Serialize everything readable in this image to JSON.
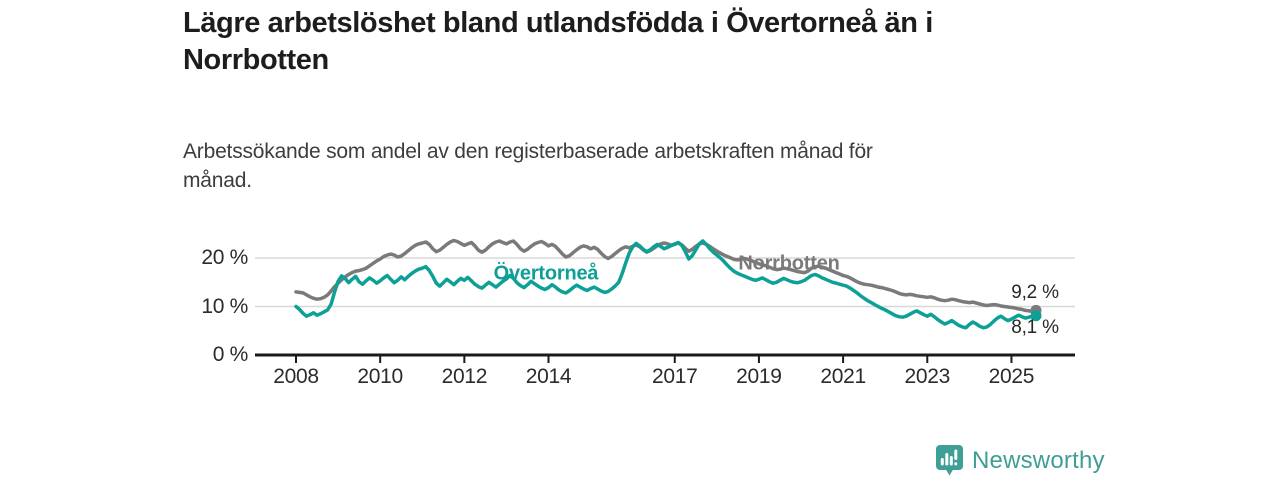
{
  "title": {
    "lines": [
      "Lägre arbetslöshet bland utlandsfödda i Övertorneå än i",
      "Norrbotten"
    ]
  },
  "subtitle": {
    "lines": [
      "Arbetssökande som andel av den registerbaserade arbetskraften månad för",
      "månad."
    ]
  },
  "branding": {
    "logo_text": "Newsworthy",
    "logo_color": "#3f9e96",
    "logo_icon": "bar-chart-speech-bubble"
  },
  "colors": {
    "axis": "#1a1a1a",
    "gridline": "#d8d8d8",
    "tick_label": "#2b2b2b",
    "title_text": "#1d1d1d",
    "subtitle_text": "#3d3d3d",
    "value_label": "#272727"
  },
  "chart_data": {
    "type": "line",
    "title": "Lägre arbetslöshet bland utlandsfödda i Övertorneå än i Norrbotten",
    "subtitle": "Arbetssökande som andel av den registerbaserade arbetskraften månad för månad.",
    "unit": "%",
    "frequency": "monthly",
    "x_range": [
      "2008-01",
      "2025-08"
    ],
    "ylim": [
      0,
      25
    ],
    "grid": "horizontal",
    "legend_position": "inline-annotations",
    "y_axis": {
      "ticks": [
        {
          "label": "0 %",
          "value": 0
        },
        {
          "label": "10 %",
          "value": 10
        },
        {
          "label": "20 %",
          "value": 20
        }
      ]
    },
    "x_axis": {
      "ticks": [
        {
          "label": "2008",
          "year": 2008
        },
        {
          "label": "2010",
          "year": 2010
        },
        {
          "label": "2012",
          "year": 2012
        },
        {
          "label": "2014",
          "year": 2014
        },
        {
          "label": "2017",
          "year": 2017
        },
        {
          "label": "2019",
          "year": 2019
        },
        {
          "label": "2021",
          "year": 2021
        },
        {
          "label": "2023",
          "year": 2023
        },
        {
          "label": "2025",
          "year": 2025
        }
      ]
    },
    "series": [
      {
        "name": "Norrbotten",
        "color": "#7a7a7a",
        "end_label": "9,2 %",
        "end_value": 9.2,
        "values": [
          13.0,
          12.9,
          12.8,
          12.4,
          12.0,
          11.7,
          11.5,
          11.6,
          11.9,
          12.4,
          13.2,
          14.1,
          14.8,
          15.5,
          16.1,
          16.6,
          17.0,
          17.3,
          17.4,
          17.6,
          17.9,
          18.4,
          18.9,
          19.4,
          19.8,
          20.3,
          20.6,
          20.8,
          20.6,
          20.2,
          20.4,
          20.9,
          21.5,
          22.1,
          22.6,
          22.9,
          23.1,
          23.3,
          22.8,
          21.9,
          21.3,
          21.6,
          22.2,
          22.8,
          23.3,
          23.6,
          23.4,
          23.0,
          22.6,
          22.9,
          23.2,
          22.5,
          21.6,
          21.2,
          21.6,
          22.3,
          22.9,
          23.3,
          23.5,
          23.2,
          22.9,
          23.3,
          23.5,
          22.8,
          21.9,
          21.4,
          21.8,
          22.4,
          22.9,
          23.2,
          23.4,
          23.0,
          22.5,
          22.8,
          22.4,
          21.6,
          20.8,
          20.2,
          20.5,
          21.1,
          21.7,
          22.2,
          22.5,
          22.3,
          21.9,
          22.2,
          21.8,
          21.0,
          20.3,
          19.9,
          20.3,
          20.9,
          21.5,
          22.0,
          22.3,
          22.1,
          22.4,
          22.7,
          22.3,
          21.7,
          21.2,
          21.5,
          22.0,
          22.5,
          22.9,
          23.1,
          22.9,
          22.6,
          22.8,
          23.1,
          22.7,
          22.0,
          21.4,
          21.8,
          22.4,
          22.9,
          23.1,
          22.8,
          22.4,
          21.9,
          21.4,
          21.0,
          20.6,
          20.3,
          20.0,
          19.7,
          19.6,
          19.8,
          19.9,
          19.7,
          19.4,
          19.1,
          18.8,
          18.6,
          18.4,
          18.1,
          17.8,
          17.6,
          17.7,
          17.9,
          17.8,
          17.6,
          17.4,
          17.2,
          17.1,
          17.0,
          17.3,
          17.9,
          18.2,
          18.3,
          18.1,
          17.9,
          17.6,
          17.3,
          17.0,
          16.7,
          16.4,
          16.2,
          15.9,
          15.5,
          15.1,
          14.8,
          14.6,
          14.5,
          14.4,
          14.2,
          14.0,
          13.9,
          13.7,
          13.5,
          13.3,
          13.0,
          12.7,
          12.5,
          12.4,
          12.5,
          12.4,
          12.2,
          12.1,
          12.0,
          11.9,
          12.0,
          11.8,
          11.5,
          11.3,
          11.2,
          11.3,
          11.5,
          11.4,
          11.2,
          11.0,
          10.9,
          10.8,
          10.9,
          10.7,
          10.5,
          10.3,
          10.2,
          10.3,
          10.4,
          10.3,
          10.1,
          10.0,
          9.9,
          9.8,
          9.7,
          9.5,
          9.4,
          9.2,
          9.1,
          9.0,
          9.2
        ]
      },
      {
        "name": "Övertorneå",
        "color": "#0da096",
        "end_label": "8,1 %",
        "end_value": 8.1,
        "values": [
          10.0,
          9.4,
          8.6,
          8.0,
          8.3,
          8.7,
          8.2,
          8.5,
          8.9,
          9.3,
          10.5,
          13.0,
          15.2,
          16.3,
          15.8,
          14.9,
          15.6,
          16.2,
          15.1,
          14.6,
          15.3,
          15.9,
          15.4,
          14.8,
          15.3,
          15.9,
          16.4,
          15.6,
          14.9,
          15.4,
          16.1,
          15.5,
          16.2,
          16.8,
          17.3,
          17.7,
          17.9,
          18.2,
          17.4,
          16.2,
          14.8,
          14.2,
          14.9,
          15.6,
          15.1,
          14.5,
          15.2,
          15.8,
          15.4,
          16.0,
          15.3,
          14.6,
          14.1,
          13.8,
          14.4,
          15.0,
          14.5,
          14.0,
          14.6,
          15.2,
          15.7,
          16.4,
          15.8,
          14.9,
          14.3,
          13.9,
          14.5,
          15.2,
          14.7,
          14.2,
          13.8,
          13.5,
          13.9,
          14.5,
          14.0,
          13.4,
          13.0,
          12.8,
          13.3,
          13.9,
          14.4,
          14.0,
          13.6,
          13.3,
          13.7,
          14.0,
          13.6,
          13.2,
          12.9,
          13.1,
          13.6,
          14.2,
          15.0,
          16.8,
          19.0,
          21.0,
          22.3,
          23.0,
          22.5,
          21.8,
          21.3,
          21.7,
          22.3,
          22.8,
          22.4,
          21.9,
          22.2,
          22.6,
          22.9,
          23.2,
          22.6,
          21.3,
          19.8,
          20.5,
          21.7,
          22.9,
          23.5,
          22.8,
          21.9,
          21.2,
          20.6,
          20.0,
          19.3,
          18.5,
          17.8,
          17.2,
          16.8,
          16.5,
          16.2,
          15.9,
          15.6,
          15.4,
          15.6,
          15.9,
          15.5,
          15.1,
          14.8,
          15.0,
          15.4,
          15.8,
          15.5,
          15.2,
          15.0,
          14.9,
          15.1,
          15.4,
          15.9,
          16.4,
          16.6,
          16.3,
          15.9,
          15.6,
          15.3,
          15.0,
          14.8,
          14.6,
          14.4,
          14.2,
          13.8,
          13.3,
          12.8,
          12.2,
          11.7,
          11.2,
          10.8,
          10.4,
          10.0,
          9.6,
          9.3,
          8.9,
          8.5,
          8.1,
          7.9,
          7.8,
          8.0,
          8.4,
          8.8,
          9.1,
          8.7,
          8.3,
          8.0,
          8.4,
          7.9,
          7.3,
          6.8,
          6.4,
          6.7,
          7.1,
          6.6,
          6.1,
          5.8,
          5.6,
          6.3,
          6.8,
          6.4,
          5.9,
          5.6,
          5.8,
          6.3,
          7.0,
          7.6,
          8.0,
          7.5,
          7.1,
          7.4,
          7.8,
          8.2,
          7.9,
          7.6,
          7.8,
          8.0,
          8.1
        ]
      }
    ]
  }
}
